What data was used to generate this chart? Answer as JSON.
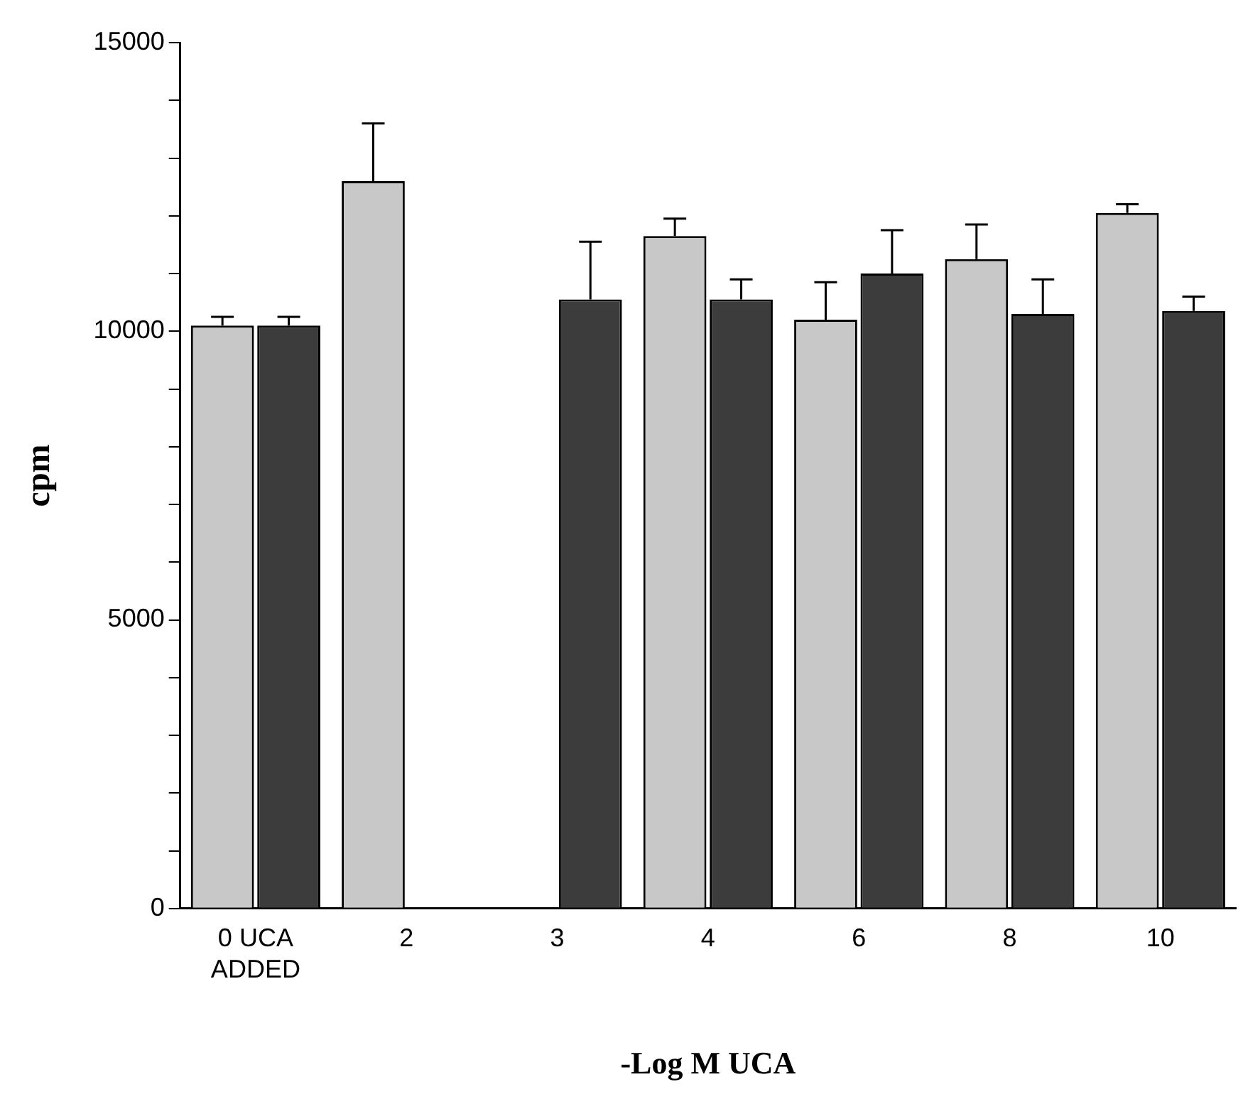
{
  "chart_data": {
    "type": "bar",
    "xlabel": "-Log M UCA",
    "ylabel": "cpm",
    "categories": [
      "0 UCA ADDED",
      "2",
      "3",
      "4",
      "6",
      "8",
      "10"
    ],
    "series": [
      {
        "color": "#c8c8c8",
        "values": [
          10100,
          12600,
          null,
          11650,
          10200,
          11250,
          12050
        ],
        "errors": [
          [
            10100,
            10250
          ],
          [
            12600,
            13600
          ],
          null,
          [
            11650,
            11950
          ],
          [
            10200,
            10850
          ],
          [
            11250,
            11850
          ],
          [
            12050,
            12200
          ]
        ]
      },
      {
        "color": "#3c3c3c",
        "values": [
          10100,
          null,
          10550,
          10550,
          11000,
          10300,
          10350
        ],
        "errors": [
          [
            10100,
            10250
          ],
          null,
          [
            10550,
            11550
          ],
          [
            10550,
            10900
          ],
          [
            11000,
            11750
          ],
          [
            10300,
            10900
          ],
          [
            10350,
            10600
          ]
        ]
      }
    ],
    "ylim": [
      0,
      15000
    ],
    "yticks": [
      0,
      {
        "value": 1000,
        "label": null
      },
      {
        "value": 2000,
        "label": null
      },
      {
        "value": 3000,
        "label": null
      },
      {
        "value": 4000,
        "label": null
      },
      5000,
      {
        "value": 6000,
        "label": null
      },
      {
        "value": 7000,
        "label": null
      },
      {
        "value": 8000,
        "label": null
      },
      {
        "value": 9000,
        "label": null
      },
      10000,
      {
        "value": 11000,
        "label": null
      },
      {
        "value": 12000,
        "label": null
      },
      {
        "value": 13000,
        "label": null
      },
      {
        "value": 14000,
        "label": null
      },
      15000
    ],
    "grid": false,
    "legend": false
  }
}
